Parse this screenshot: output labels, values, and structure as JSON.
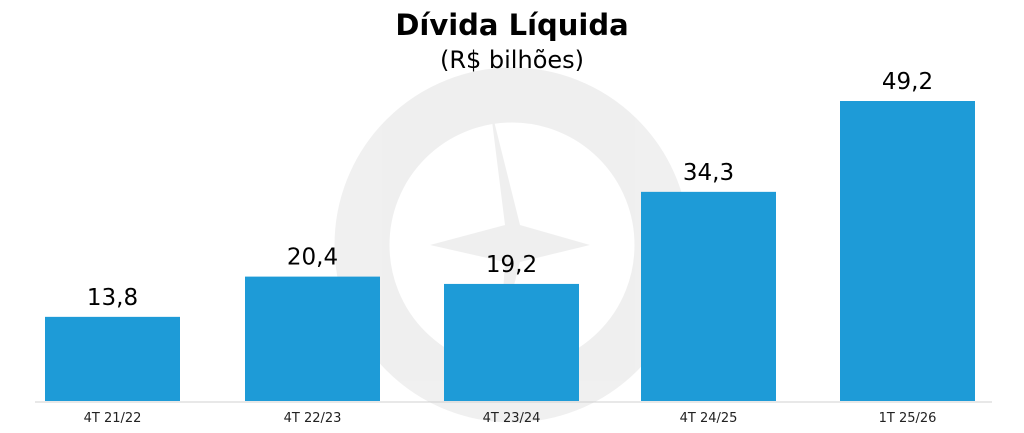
{
  "chart_data": {
    "type": "bar",
    "title": "Dívida Líquida",
    "subtitle": "(R$ bilhões)",
    "categories": [
      "4T 21/22",
      "4T 22/23",
      "4T 23/24",
      "4T 24/25",
      "1T 25/26"
    ],
    "values": [
      13.8,
      20.4,
      19.2,
      34.3,
      49.2
    ],
    "data_labels": [
      "13,8",
      "20,4",
      "19,2",
      "34,3",
      "49,2"
    ],
    "xlabel": "",
    "ylabel": "",
    "ylim": [
      0,
      49.2
    ],
    "grid": false,
    "bar_color": "#1e9bd7"
  }
}
